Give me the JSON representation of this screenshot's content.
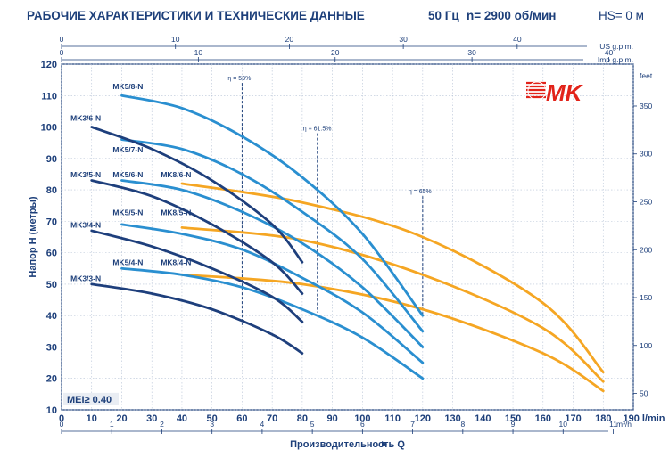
{
  "header": {
    "title": "РАБОЧИЕ ХАРАКТЕРИСТИКИ И ТЕХНИЧЕСКИЕ ДАННЫЕ",
    "frequency": "50 Гц",
    "speed": "n= 2900 об/мин",
    "hs": "HS= 0 м"
  },
  "logo": {
    "text": "MK",
    "color": "#e2231a"
  },
  "colors": {
    "dark": "#1e3f7c",
    "blue": "#2a8fd0",
    "orange": "#f5a623",
    "axis": "#1d3f7a",
    "grid": "#b7c3d6"
  },
  "chart_data": {
    "type": "line",
    "xlabel": "Производительность Q",
    "ylabel": "Напор H (метры)",
    "x_unit": "l/min",
    "xlim": [
      0,
      190
    ],
    "ylim": [
      10,
      120
    ],
    "x_ticks": [
      0,
      10,
      20,
      30,
      40,
      50,
      60,
      70,
      80,
      90,
      100,
      110,
      120,
      130,
      140,
      150,
      160,
      170,
      180,
      190
    ],
    "x_last_label": "190 l/min",
    "y_ticks": [
      10,
      20,
      30,
      40,
      50,
      60,
      70,
      80,
      90,
      100,
      110,
      120
    ],
    "secondary_axes": {
      "us_gpm": {
        "label": "US g.p.m.",
        "ticks": [
          0,
          10,
          20,
          30,
          40
        ],
        "labeled": [
          0,
          10,
          20,
          30,
          40
        ]
      },
      "imp_gpm": {
        "label": "Imp g.p.m.",
        "ticks": [
          0,
          10,
          20,
          30,
          40
        ],
        "labeled": [
          0,
          10,
          20,
          30,
          40
        ]
      },
      "m3h": {
        "label": "m³/h",
        "ticks": [
          0,
          1,
          2,
          3,
          4,
          5,
          6,
          7,
          8,
          9,
          10,
          11
        ],
        "labeled": [
          0,
          1,
          2,
          3,
          4,
          5,
          6,
          7,
          8,
          9,
          10,
          11
        ]
      },
      "feet": {
        "label": "feet",
        "ticks": [
          50,
          100,
          150,
          200,
          250,
          300,
          350
        ],
        "labeled": [
          50,
          100,
          150,
          200,
          250,
          300,
          350
        ]
      }
    },
    "annotation": "MEI≥ 0.40",
    "efficiency_lines": [
      {
        "label": "η = 53%",
        "x": 60,
        "y_top": 114,
        "y_bottom": 37
      },
      {
        "label": "η = 61.5%",
        "x": 85,
        "y_top": 98,
        "y_bottom": 41
      },
      {
        "label": "η = 65%",
        "x": 120,
        "y_top": 78,
        "y_bottom": 40
      }
    ],
    "series": [
      {
        "name": "MK3/3-N",
        "color": "dark",
        "x": [
          10,
          30,
          50,
          70,
          80
        ],
        "y": [
          50,
          47,
          42,
          34,
          28
        ]
      },
      {
        "name": "MK3/4-N",
        "color": "dark",
        "x": [
          10,
          30,
          50,
          70,
          80
        ],
        "y": [
          67,
          62,
          55,
          46,
          38
        ]
      },
      {
        "name": "MK3/5-N",
        "color": "dark",
        "x": [
          10,
          30,
          50,
          70,
          80
        ],
        "y": [
          83,
          78,
          69,
          57,
          47
        ]
      },
      {
        "name": "MK3/6-N",
        "color": "dark",
        "x": [
          10,
          30,
          50,
          70,
          80
        ],
        "y": [
          100,
          93,
          83,
          69,
          57
        ]
      },
      {
        "name": "MK5/4-N",
        "color": "blue",
        "x": [
          20,
          40,
          60,
          80,
          100,
          120
        ],
        "y": [
          55,
          53,
          49,
          42,
          33,
          20
        ]
      },
      {
        "name": "MK5/5-N",
        "color": "blue",
        "x": [
          20,
          40,
          60,
          80,
          100,
          120
        ],
        "y": [
          69,
          66,
          61,
          52,
          41,
          25
        ]
      },
      {
        "name": "MK5/6-N",
        "color": "blue",
        "x": [
          20,
          40,
          60,
          80,
          100,
          120
        ],
        "y": [
          83,
          80,
          73,
          63,
          49,
          30
        ]
      },
      {
        "name": "MK5/7-N",
        "color": "blue",
        "x": [
          20,
          40,
          60,
          80,
          100,
          120
        ],
        "y": [
          96,
          93,
          85,
          73,
          58,
          35
        ]
      },
      {
        "name": "MK5/8-N",
        "color": "blue",
        "x": [
          20,
          40,
          60,
          80,
          100,
          120
        ],
        "y": [
          110,
          106,
          97,
          84,
          66,
          40
        ]
      },
      {
        "name": "MK8/4-N",
        "color": "orange",
        "x": [
          40,
          80,
          120,
          160,
          180
        ],
        "y": [
          53,
          50,
          42,
          28,
          16
        ]
      },
      {
        "name": "MK8/5-N",
        "color": "orange",
        "x": [
          40,
          80,
          120,
          160,
          180
        ],
        "y": [
          68,
          64,
          53,
          36,
          19
        ]
      },
      {
        "name": "MK8/6-N",
        "color": "orange",
        "x": [
          40,
          80,
          120,
          160,
          180
        ],
        "y": [
          82,
          76,
          65,
          44,
          22
        ]
      }
    ],
    "series_labels": [
      {
        "name": "MK5/8-N",
        "at": [
          17,
          112
        ]
      },
      {
        "name": "MK3/6-N",
        "at": [
          3,
          102
        ]
      },
      {
        "name": "MK5/7-N",
        "at": [
          17,
          92
        ]
      },
      {
        "name": "MK3/5-N",
        "at": [
          3,
          84
        ]
      },
      {
        "name": "MK5/6-N",
        "at": [
          17,
          84
        ]
      },
      {
        "name": "MK8/6-N",
        "at": [
          33,
          84
        ]
      },
      {
        "name": "MK5/5-N",
        "at": [
          17,
          72
        ]
      },
      {
        "name": "MK8/5-N",
        "at": [
          33,
          72
        ]
      },
      {
        "name": "MK3/4-N",
        "at": [
          3,
          68
        ]
      },
      {
        "name": "MK5/4-N",
        "at": [
          17,
          56
        ]
      },
      {
        "name": "MK8/4-N",
        "at": [
          33,
          56
        ]
      },
      {
        "name": "MK3/3-N",
        "at": [
          3,
          51
        ]
      }
    ]
  }
}
